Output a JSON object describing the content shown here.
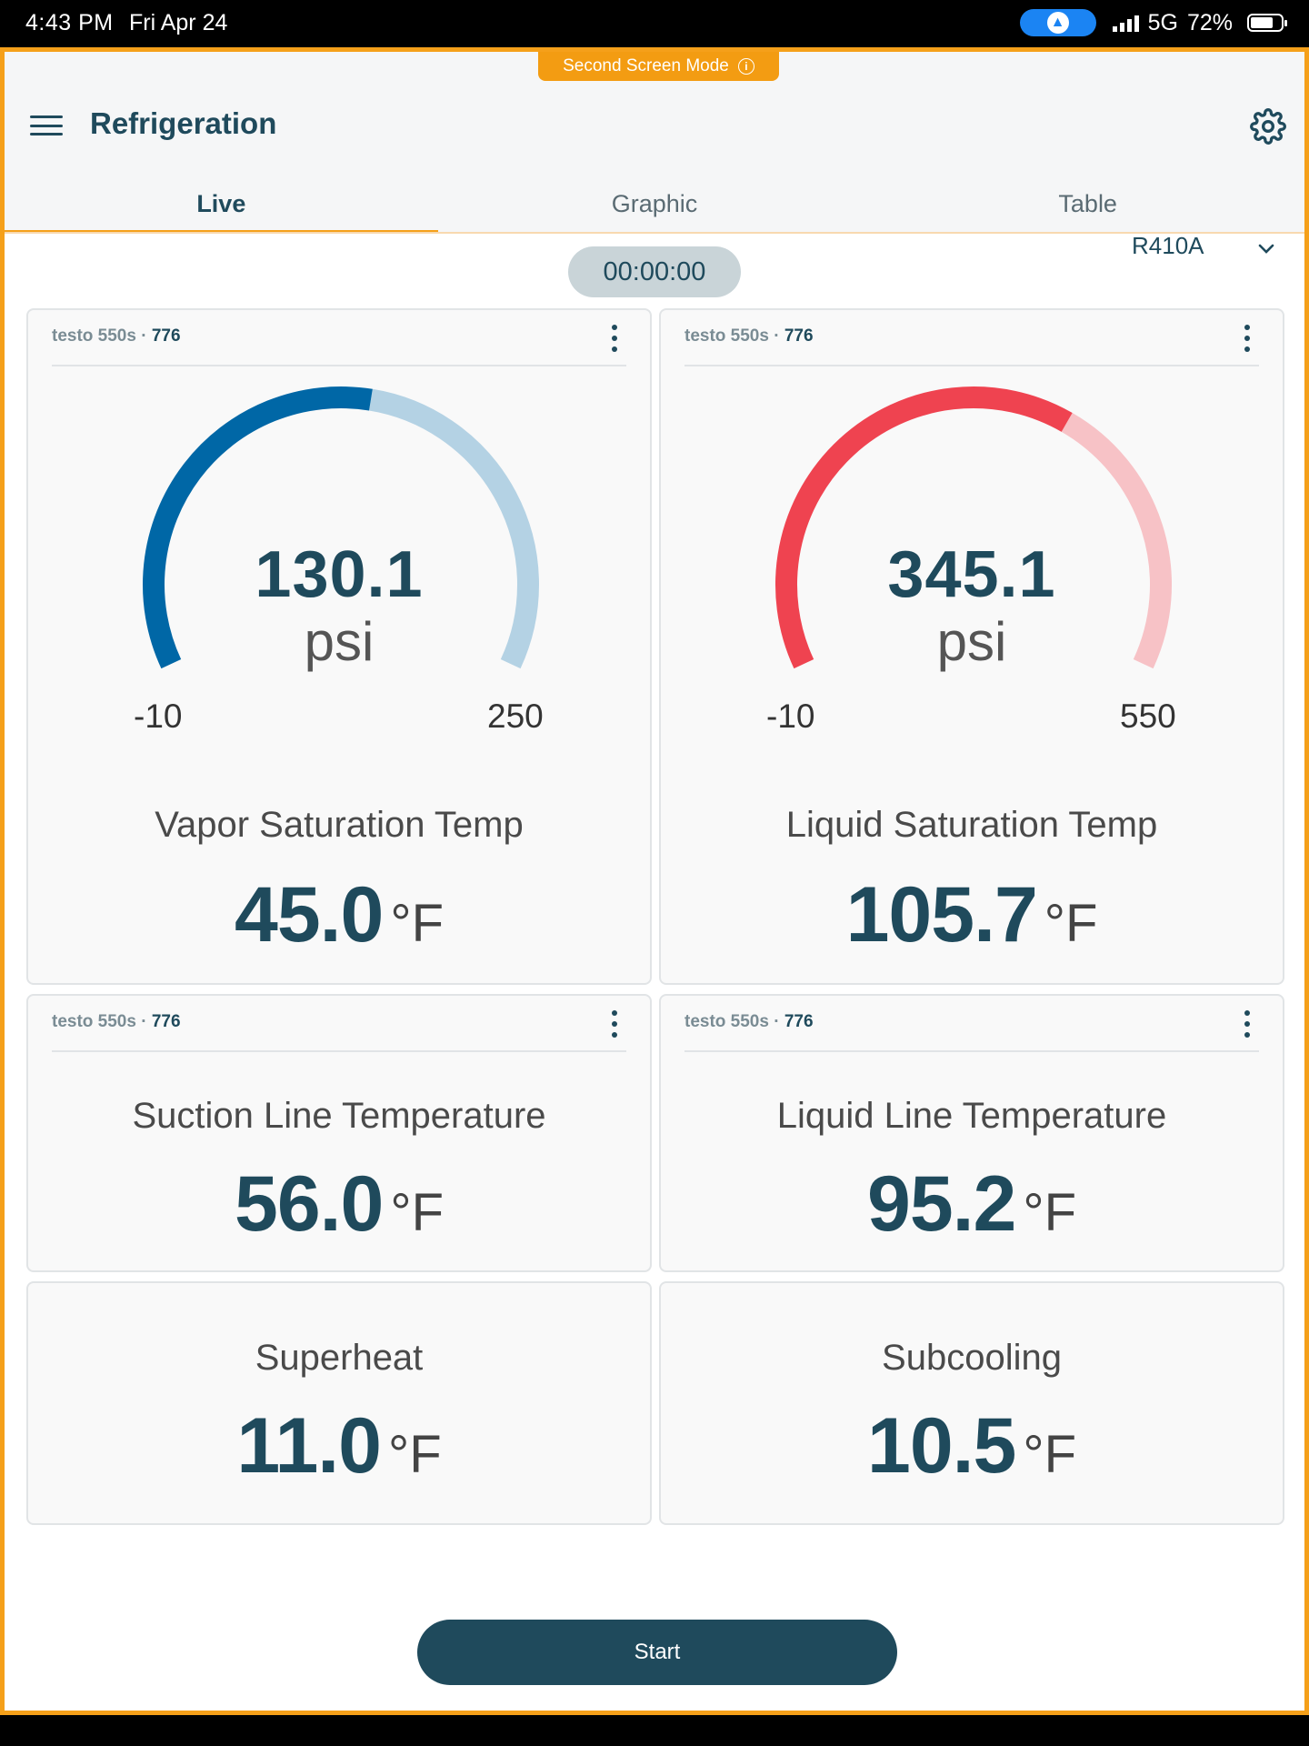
{
  "status_bar": {
    "time": "4:43 PM",
    "date": "Fri Apr 24",
    "network": "5G",
    "battery": "72%"
  },
  "banner": {
    "text": "Second Screen Mode",
    "info_glyph": "i"
  },
  "header": {
    "title": "Refrigeration"
  },
  "tabs": [
    {
      "label": "Live"
    },
    {
      "label": "Graphic"
    },
    {
      "label": "Table"
    }
  ],
  "refrigerant": "R410A",
  "timer": "00:00:00",
  "cards": {
    "low_pressure": {
      "device": "testo 550s",
      "device_id": "776",
      "gauge": {
        "value": "130.1",
        "unit": "psi",
        "min": "-10",
        "max": "250",
        "fill_fraction": 0.54,
        "color": "#0067a6",
        "track_color": "#b4d2e4"
      },
      "label": "Vapor Saturation Temp",
      "reading": "45.0",
      "reading_unit": "°F"
    },
    "high_pressure": {
      "device": "testo 550s",
      "device_id": "776",
      "gauge": {
        "value": "345.1",
        "unit": "psi",
        "min": "-10",
        "max": "550",
        "fill_fraction": 0.63,
        "color": "#ef4350",
        "track_color": "#f7c2c6"
      },
      "label": "Liquid Saturation Temp",
      "reading": "105.7",
      "reading_unit": "°F"
    },
    "suction_temp": {
      "device": "testo 550s",
      "device_id": "776",
      "label": "Suction Line Temperature",
      "reading": "56.0",
      "reading_unit": "°F"
    },
    "liquid_temp": {
      "device": "testo 550s",
      "device_id": "776",
      "label": "Liquid Line Temperature",
      "reading": "95.2",
      "reading_unit": "°F"
    },
    "superheat": {
      "label": "Superheat",
      "reading": "11.0",
      "reading_unit": "°F"
    },
    "subcooling": {
      "label": "Subcooling",
      "reading": "10.5",
      "reading_unit": "°F"
    }
  },
  "start_button": "Start",
  "colors": {
    "accent": "#f5a01a",
    "primary": "#1f4a5c"
  },
  "icons": [
    "menu-icon",
    "gear-icon",
    "chevron-down-icon",
    "kebab-menu-icon",
    "info-icon"
  ]
}
